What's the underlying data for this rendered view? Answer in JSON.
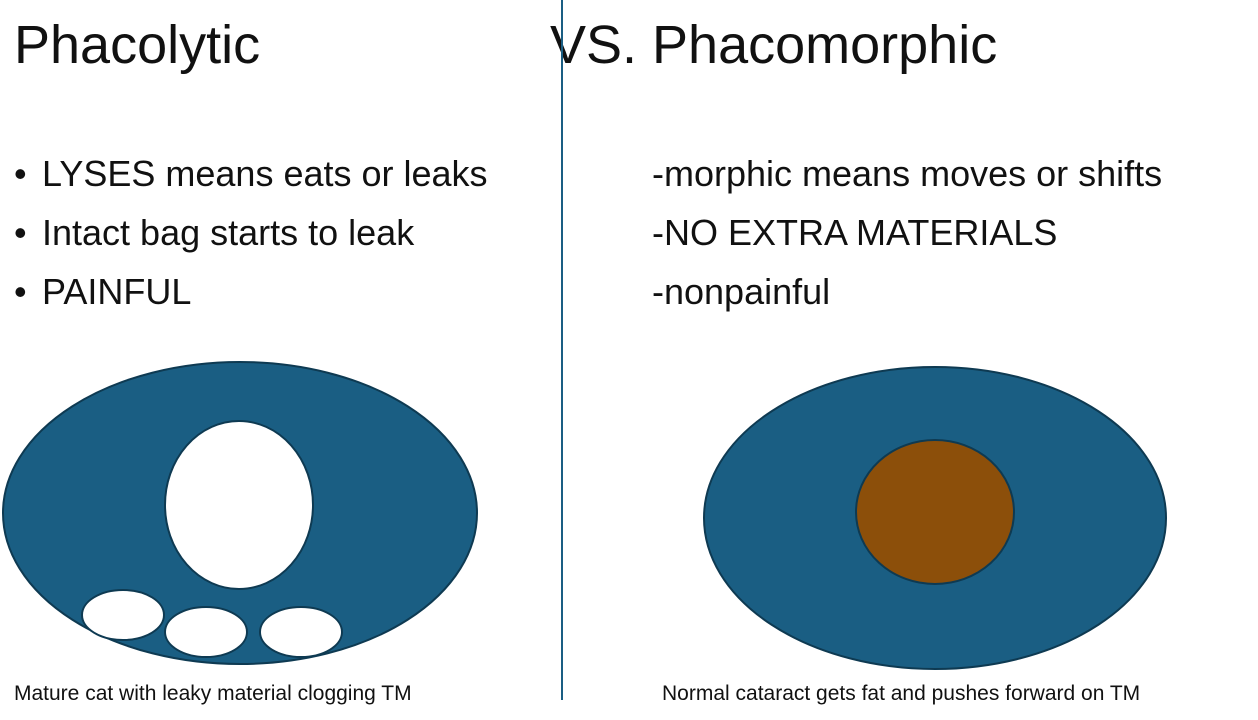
{
  "slide": {
    "title_left": "Phacolytic",
    "title_right": "VS. Phacomorphic",
    "left_bullets": [
      "LYSES means eats or leaks",
      "Intact bag starts to leak",
      "PAINFUL"
    ],
    "right_lines": [
      "-morphic means moves or shifts",
      "-NO EXTRA MATERIALS",
      "-nonpainful"
    ],
    "caption_left": "Mature cat with leaky material clogging TM",
    "caption_right": "Normal cataract gets fat and pushes forward on TM",
    "colors": {
      "eye_fill": "#1a5e83",
      "nucleus_fill": "#8c4f0a",
      "divider": "#1a5e83"
    }
  }
}
